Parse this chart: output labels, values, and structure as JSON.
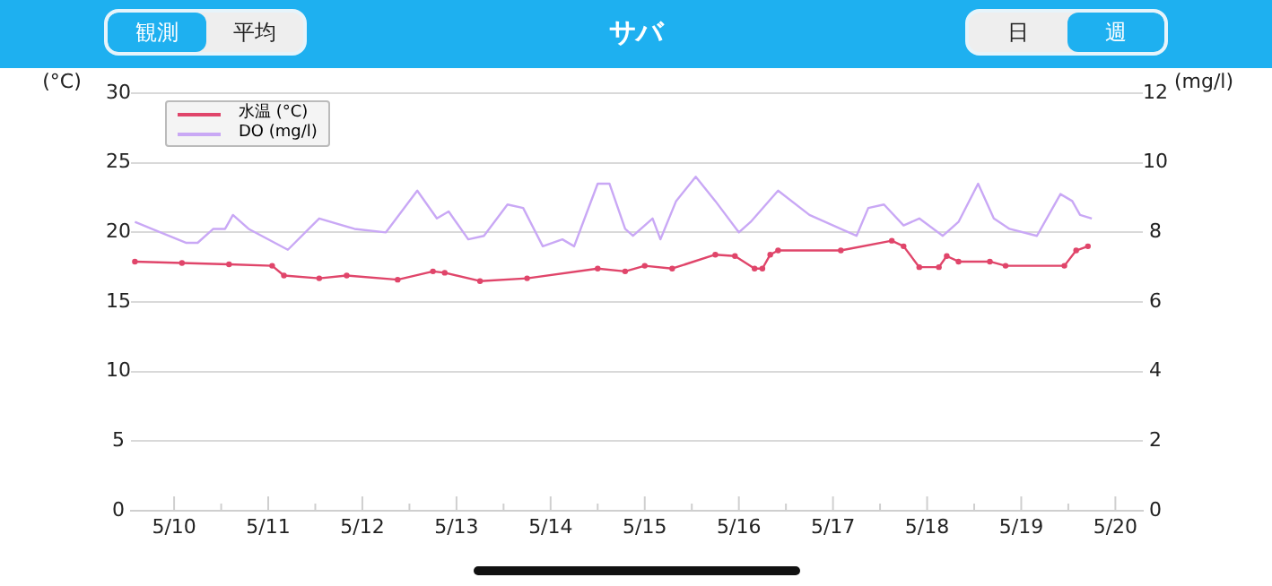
{
  "chart_data": {
    "type": "line",
    "title": "サバ",
    "annotations": [
      "観測",
      "平均",
      "日",
      "週"
    ],
    "ylabel": "(°C)",
    "y2label": "(mg/l)",
    "xlim": [
      "--05-09T13:00",
      "--05-20T07:00"
    ],
    "xticks": [
      {
        "value": "--05-10",
        "label": "5/10"
      },
      {
        "value": "--05-10T12:00",
        "label": null
      },
      {
        "value": "--05-11",
        "label": "5/11"
      },
      {
        "value": "--05-11T12:00",
        "label": null
      },
      {
        "value": "--05-12",
        "label": "5/12"
      },
      {
        "value": "--05-12T12:00",
        "label": null
      },
      {
        "value": "--05-13",
        "label": "5/13"
      },
      {
        "value": "--05-13T12:00",
        "label": null
      },
      {
        "value": "--05-14",
        "label": "5/14"
      },
      {
        "value": "--05-14T12:00",
        "label": null
      },
      {
        "value": "--05-15",
        "label": "5/15"
      },
      {
        "value": "--05-15T12:00",
        "label": null
      },
      {
        "value": "--05-16",
        "label": "5/16"
      },
      {
        "value": "--05-16T12:00",
        "label": null
      },
      {
        "value": "--05-17",
        "label": "5/17"
      },
      {
        "value": "--05-17T12:00",
        "label": null
      },
      {
        "value": "--05-18",
        "label": "5/18"
      },
      {
        "value": "--05-18T12:00",
        "label": null
      },
      {
        "value": "--05-19",
        "label": "5/19"
      },
      {
        "value": "--05-19T12:00",
        "label": null
      },
      {
        "value": "--05-20",
        "label": "5/20"
      }
    ],
    "ylim": [
      0,
      30
    ],
    "yticks": [
      0,
      5,
      10,
      15,
      20,
      25,
      30
    ],
    "y2lim": [
      0,
      12
    ],
    "y2ticks": [
      0,
      2,
      4,
      6,
      8,
      10,
      12
    ],
    "grid": "y",
    "legend": "top left",
    "series": [
      {
        "name": "水温 (°C)",
        "color": "#e0456a",
        "marker": "circle",
        "x": [
          "--05-09T14:00",
          "--05-10T02:00",
          "--05-10T14:00",
          "--05-11T01:00",
          "--05-11T04:00",
          "--05-11T13:00",
          "--05-11T20:00",
          "--05-12T09:00",
          "--05-12T18:00",
          "--05-12T21:00",
          "--05-13T06:00",
          "--05-13T18:00",
          "--05-14T12:00",
          "--05-14T19:00",
          "--05-15T00:00",
          "--05-15T07:00",
          "--05-15T18:00",
          "--05-15T23:00",
          "--05-16T04:00",
          "--05-16T06:00",
          "--05-16T08:00",
          "--05-16T10:00",
          "--05-17T02:00",
          "--05-17T15:00",
          "--05-17T18:00",
          "--05-17T22:00",
          "--05-18T03:00",
          "--05-18T05:00",
          "--05-18T08:00",
          "--05-18T16:00",
          "--05-18T20:00",
          "--05-19T11:00",
          "--05-19T14:00",
          "--05-19T17:00"
        ],
        "values": [
          17.9,
          17.8,
          17.7,
          17.6,
          16.9,
          16.7,
          16.9,
          16.6,
          17.2,
          17.1,
          16.5,
          16.7,
          17.4,
          17.2,
          17.6,
          17.4,
          18.4,
          18.3,
          17.4,
          17.4,
          18.4,
          18.7,
          18.7,
          19.4,
          19.0,
          17.5,
          17.5,
          18.3,
          17.9,
          17.9,
          17.6,
          17.6,
          18.7,
          19.0
        ]
      },
      {
        "name": "DO (mg/l)",
        "color": "#c9a8f5",
        "axis": "y2",
        "x": [
          "--05-09T14:00",
          "--05-10T03:00",
          "--05-10T06:00",
          "--05-10T10:00",
          "--05-10T13:00",
          "--05-10T15:00",
          "--05-10T19:00",
          "--05-11T05:00",
          "--05-11T13:00",
          "--05-11T22:00",
          "--05-12T06:00",
          "--05-12T14:00",
          "--05-12T19:00",
          "--05-12T22:00",
          "--05-13T03:00",
          "--05-13T07:00",
          "--05-13T13:00",
          "--05-13T17:00",
          "--05-13T22:00",
          "--05-14T03:00",
          "--05-14T06:00",
          "--05-14T12:00",
          "--05-14T15:00",
          "--05-14T19:00",
          "--05-14T21:00",
          "--05-15T02:00",
          "--05-15T04:00",
          "--05-15T08:00",
          "--05-15T13:00",
          "--05-15T18:00",
          "--05-16T00:00",
          "--05-16T03:00",
          "--05-16T10:00",
          "--05-16T18:00",
          "--05-17T06:00",
          "--05-17T09:00",
          "--05-17T13:00",
          "--05-17T18:00",
          "--05-17T22:00",
          "--05-18T04:00",
          "--05-18T08:00",
          "--05-18T13:00",
          "--05-18T17:00",
          "--05-18T21:00",
          "--05-19T04:00",
          "--05-19T10:00",
          "--05-19T13:00",
          "--05-19T15:00",
          "--05-19T18:00"
        ],
        "values": [
          8.3,
          7.7,
          7.7,
          8.1,
          8.1,
          8.5,
          8.1,
          7.5,
          8.4,
          8.1,
          8.0,
          9.2,
          8.4,
          8.6,
          7.8,
          7.9,
          8.8,
          8.7,
          7.6,
          7.8,
          7.6,
          9.4,
          9.4,
          8.1,
          7.9,
          8.4,
          7.8,
          8.9,
          9.6,
          8.9,
          8.0,
          8.3,
          9.2,
          8.5,
          7.9,
          8.7,
          8.8,
          8.2,
          8.4,
          7.9,
          8.3,
          9.4,
          8.4,
          8.1,
          7.9,
          9.1,
          8.9,
          8.5,
          8.4
        ]
      }
    ]
  }
}
